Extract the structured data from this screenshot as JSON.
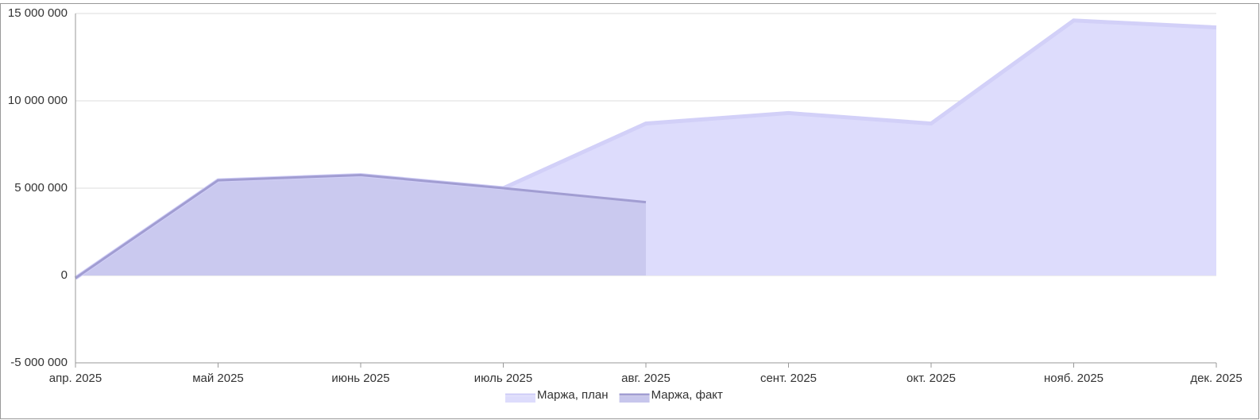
{
  "chart_data": {
    "type": "area",
    "categories": [
      "апр. 2025",
      "май 2025",
      "июнь 2025",
      "июль 2025",
      "авг. 2025",
      "сент. 2025",
      "окт. 2025",
      "нояб. 2025",
      "дек. 2025"
    ],
    "series": [
      {
        "name": "Маржа, план",
        "color": "#d2d0f8",
        "fill": "#dddcfc",
        "values": [
          -150000,
          5450000,
          5750000,
          5000000,
          8700000,
          9300000,
          8700000,
          14600000,
          14200000
        ]
      },
      {
        "name": "Маржа, факт",
        "color": "#a19dd2",
        "fill": "#c7c6ec",
        "values": [
          -150000,
          5450000,
          5750000,
          5000000,
          4200000,
          null,
          null,
          null,
          null
        ]
      }
    ],
    "ylim": [
      -5000000,
      15000000
    ],
    "yticks": [
      {
        "value": -5000000,
        "label": "-5 000 000"
      },
      0,
      {
        "value": 5000000,
        "label": "5 000 000"
      },
      {
        "value": 10000000,
        "label": "10 000 000"
      },
      {
        "value": 15000000,
        "label": "15 000 000"
      }
    ],
    "grid": true,
    "legend": "bottom"
  }
}
